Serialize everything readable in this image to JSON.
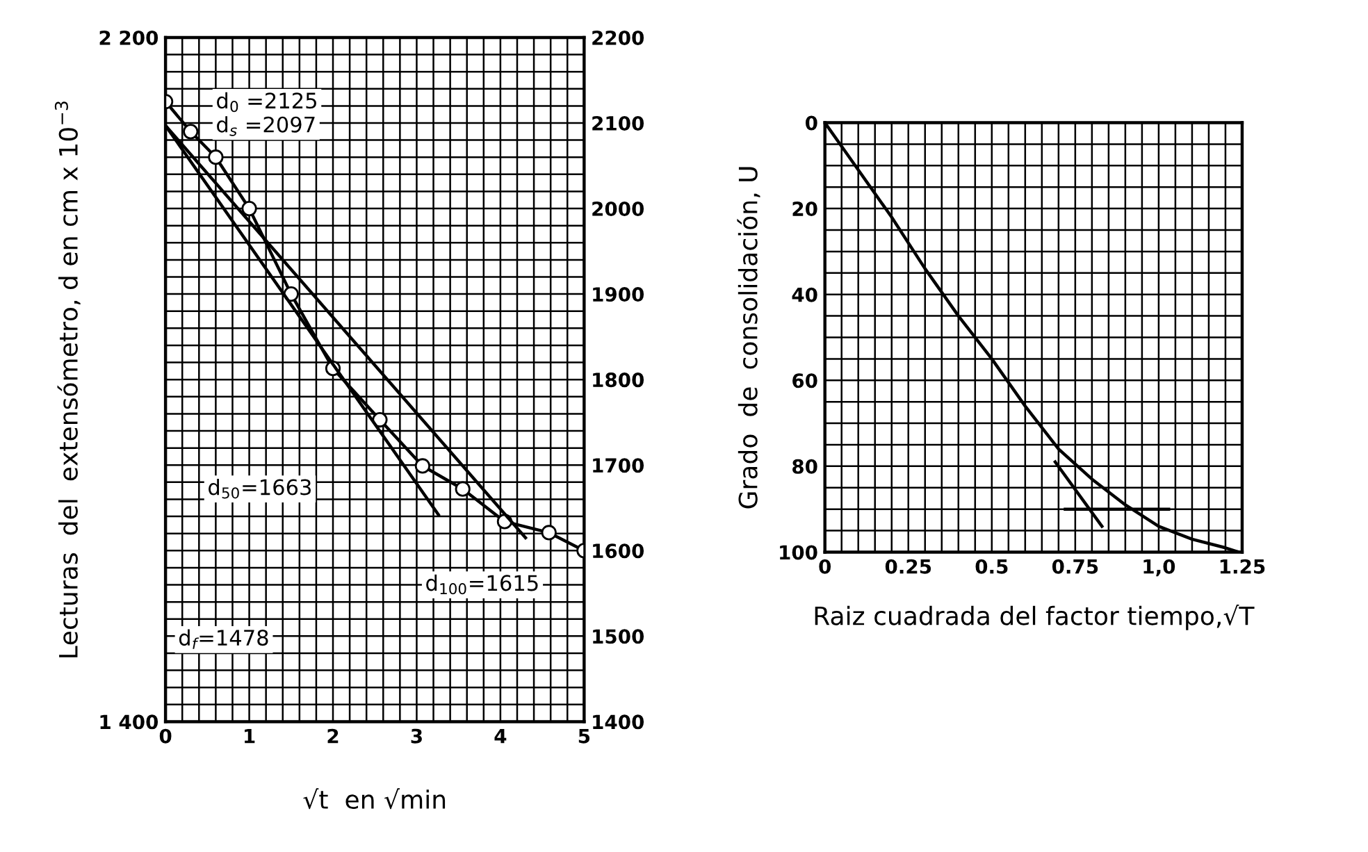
{
  "chart_data": [
    {
      "type": "line",
      "xlabel": "√t  en √min",
      "ylabel": "Lecturas  del  extensómetro, d en cm x 10$^{−3}$",
      "grid": true,
      "xlim": [
        0,
        5
      ],
      "ylim": [
        1400,
        2200
      ],
      "y2lim": [
        1400,
        2200
      ],
      "xticks": [
        0,
        {
          "value": 0.2,
          "label": null
        },
        {
          "value": 0.4,
          "label": null
        },
        {
          "value": 0.6,
          "label": null
        },
        {
          "value": 0.8,
          "label": null
        },
        1,
        {
          "value": 1.2,
          "label": null
        },
        {
          "value": 1.4,
          "label": null
        },
        {
          "value": 1.6,
          "label": null
        },
        {
          "value": 1.8,
          "label": null
        },
        2,
        {
          "value": 2.2,
          "label": null
        },
        {
          "value": 2.4,
          "label": null
        },
        {
          "value": 2.6,
          "label": null
        },
        {
          "value": 2.8,
          "label": null
        },
        3,
        {
          "value": 3.2,
          "label": null
        },
        {
          "value": 3.4,
          "label": null
        },
        {
          "value": 3.6,
          "label": null
        },
        {
          "value": 3.8,
          "label": null
        },
        4,
        {
          "value": 4.2,
          "label": null
        },
        {
          "value": 4.4,
          "label": null
        },
        {
          "value": 4.6,
          "label": null
        },
        {
          "value": 4.8,
          "label": null
        },
        5
      ],
      "yticks": [
        {
          "value": 1400,
          "label": "1 400"
        },
        {
          "value": 1420,
          "label": null
        },
        {
          "value": 1440,
          "label": null
        },
        {
          "value": 1460,
          "label": null
        },
        {
          "value": 1480,
          "label": null
        },
        {
          "value": 1500,
          "label": null
        },
        {
          "value": 1520,
          "label": null
        },
        {
          "value": 1540,
          "label": null
        },
        {
          "value": 1560,
          "label": null
        },
        {
          "value": 1580,
          "label": null
        },
        {
          "value": 1600,
          "label": null
        },
        {
          "value": 1620,
          "label": null
        },
        {
          "value": 1640,
          "label": null
        },
        {
          "value": 1660,
          "label": null
        },
        {
          "value": 1680,
          "label": null
        },
        {
          "value": 1700,
          "label": null
        },
        {
          "value": 1720,
          "label": null
        },
        {
          "value": 1740,
          "label": null
        },
        {
          "value": 1760,
          "label": null
        },
        {
          "value": 1780,
          "label": null
        },
        {
          "value": 1800,
          "label": null
        },
        {
          "value": 1820,
          "label": null
        },
        {
          "value": 1840,
          "label": null
        },
        {
          "value": 1860,
          "label": null
        },
        {
          "value": 1880,
          "label": null
        },
        {
          "value": 1900,
          "label": null
        },
        {
          "value": 1920,
          "label": null
        },
        {
          "value": 1940,
          "label": null
        },
        {
          "value": 1960,
          "label": null
        },
        {
          "value": 1980,
          "label": null
        },
        {
          "value": 2000,
          "label": null
        },
        {
          "value": 2020,
          "label": null
        },
        {
          "value": 2040,
          "label": null
        },
        {
          "value": 2060,
          "label": null
        },
        {
          "value": 2080,
          "label": null
        },
        {
          "value": 2100,
          "label": null
        },
        {
          "value": 2120,
          "label": null
        },
        {
          "value": 2140,
          "label": null
        },
        {
          "value": 2160,
          "label": null
        },
        {
          "value": 2180,
          "label": null
        },
        {
          "value": 2200,
          "label": "2 200"
        }
      ],
      "y2ticks": [
        1400,
        1500,
        1600,
        1700,
        1800,
        1900,
        2000,
        2100,
        2200
      ],
      "series": [
        {
          "color": "#000000",
          "marker": "circle",
          "x": [
            0,
            0.3,
            0.6,
            1.0,
            1.5,
            2.0,
            2.56,
            3.07,
            3.55,
            4.05,
            4.58,
            5.0
          ],
          "values": [
            2125,
            2090,
            2060,
            2000,
            1900,
            1813,
            1753,
            1699,
            1672,
            1634,
            1621,
            1600
          ]
        },
        {
          "color": "#000000",
          "marker": "none",
          "x": [
            0,
            3.26
          ],
          "values": [
            2097,
            1642
          ]
        },
        {
          "color": "#000000",
          "marker": "none",
          "x": [
            0,
            4.3
          ],
          "values": [
            2097,
            1615
          ]
        }
      ],
      "annotations": [
        "d$_{0}$ =2125",
        "d$_{s}$ =2097",
        "d$_{50}$=1663",
        "d$_{100}$=1615",
        "d$_{f}$=1478"
      ]
    },
    {
      "type": "line",
      "xlabel": "Raiz cuadrada del factor tiempo,√T",
      "ylabel": "Grado  de  consolidación, U",
      "grid": true,
      "xlim": [
        0,
        1.25
      ],
      "ylim": [
        100,
        0
      ],
      "xticks": [
        0,
        {
          "value": 0.05,
          "label": null
        },
        {
          "value": 0.1,
          "label": null
        },
        {
          "value": 0.15,
          "label": null
        },
        {
          "value": 0.2,
          "label": null
        },
        0.25,
        {
          "value": 0.3,
          "label": null
        },
        {
          "value": 0.35,
          "label": null
        },
        {
          "value": 0.4,
          "label": null
        },
        {
          "value": 0.45,
          "label": null
        },
        0.5,
        {
          "value": 0.55,
          "label": null
        },
        {
          "value": 0.6,
          "label": null
        },
        {
          "value": 0.65,
          "label": null
        },
        {
          "value": 0.7,
          "label": null
        },
        0.75,
        {
          "value": 0.8,
          "label": null
        },
        {
          "value": 0.85,
          "label": null
        },
        {
          "value": 0.9,
          "label": null
        },
        {
          "value": 0.95,
          "label": null
        },
        {
          "value": 1.0,
          "label": "1,0"
        },
        {
          "value": 1.05,
          "label": null
        },
        {
          "value": 1.1,
          "label": null
        },
        {
          "value": 1.15,
          "label": null
        },
        {
          "value": 1.2,
          "label": null
        },
        1.25
      ],
      "yticks": [
        0,
        {
          "value": 5,
          "label": null
        },
        {
          "value": 10,
          "label": null
        },
        {
          "value": 15,
          "label": null
        },
        20,
        {
          "value": 25,
          "label": null
        },
        {
          "value": 30,
          "label": null
        },
        {
          "value": 35,
          "label": null
        },
        40,
        {
          "value": 45,
          "label": null
        },
        {
          "value": 50,
          "label": null
        },
        {
          "value": 55,
          "label": null
        },
        60,
        {
          "value": 65,
          "label": null
        },
        {
          "value": 70,
          "label": null
        },
        {
          "value": 75,
          "label": null
        },
        80,
        {
          "value": 85,
          "label": null
        },
        {
          "value": 90,
          "label": null
        },
        {
          "value": 95,
          "label": null
        },
        100
      ],
      "series": [
        {
          "color": "#000000",
          "marker": "none",
          "x": [
            0,
            0.1,
            0.2,
            0.3,
            0.4,
            0.5,
            0.6,
            0.7,
            0.8,
            0.9,
            1.0,
            1.1,
            1.2,
            1.24
          ],
          "values": [
            0,
            11,
            22,
            34,
            45,
            55,
            66,
            76,
            83,
            89,
            94,
            97,
            99,
            100
          ]
        },
        {
          "color": "#000000",
          "marker": "none",
          "x": [
            0.69,
            0.83
          ],
          "values": [
            79,
            94
          ]
        },
        {
          "color": "#000000",
          "marker": "none",
          "x": [
            0.72,
            1.03
          ],
          "values": [
            90,
            90
          ]
        }
      ]
    }
  ]
}
